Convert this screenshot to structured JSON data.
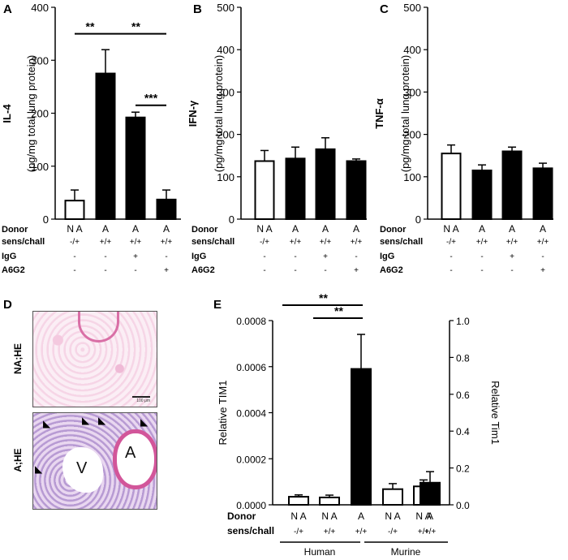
{
  "panel_letters": [
    "A",
    "B",
    "C",
    "D",
    "E"
  ],
  "table_rows": [
    "Donor",
    "sens/chall",
    "IgG",
    "A6G2"
  ],
  "chart_data": [
    {
      "panel": "A",
      "type": "bar",
      "ylabel_main": "IL-4",
      "ylabel_sub": "(pg/mg total lung protein)",
      "ylim": [
        0,
        400
      ],
      "yticks": [
        0,
        100,
        200,
        300,
        400
      ],
      "values": [
        35,
        275,
        192,
        37
      ],
      "errors": [
        20,
        45,
        10,
        18
      ],
      "fills": [
        "#ffffff",
        "#000000",
        "#000000",
        "#000000"
      ],
      "conditions": {
        "Donor": [
          "N A",
          "A",
          "A",
          "A"
        ],
        "sens/chall": [
          "-/+",
          "+/+",
          "+/+",
          "+/+"
        ],
        "IgG": [
          "-",
          "-",
          "+",
          "-"
        ],
        "A6G2": [
          "-",
          "-",
          "-",
          "+"
        ]
      },
      "significance": [
        {
          "from": 0,
          "to": 1,
          "label": "**"
        },
        {
          "from": 1,
          "to": 3,
          "label": "**"
        },
        {
          "from": 2,
          "to": 3,
          "label": "***"
        }
      ]
    },
    {
      "panel": "B",
      "type": "bar",
      "ylabel_main": "IFN-γ",
      "ylabel_sub": "(pg/mg total lung protein)",
      "ylim": [
        0,
        500
      ],
      "yticks": [
        0,
        100,
        200,
        300,
        400,
        500
      ],
      "values": [
        137,
        143,
        165,
        137
      ],
      "errors": [
        25,
        27,
        27,
        5
      ],
      "fills": [
        "#ffffff",
        "#000000",
        "#000000",
        "#000000"
      ],
      "conditions": {
        "Donor": [
          "N A",
          "A",
          "A",
          "A"
        ],
        "sens/chall": [
          "-/+",
          "+/+",
          "+/+",
          "+/+"
        ],
        "IgG": [
          "-",
          "-",
          "+",
          "-"
        ],
        "A6G2": [
          "-",
          "-",
          "-",
          "+"
        ]
      },
      "significance": []
    },
    {
      "panel": "C",
      "type": "bar",
      "ylabel_main": "TNF-α",
      "ylabel_sub": "(pg/mg total lung protein)",
      "ylim": [
        0,
        500
      ],
      "yticks": [
        0,
        100,
        200,
        300,
        400,
        500
      ],
      "values": [
        155,
        115,
        160,
        120
      ],
      "errors": [
        20,
        13,
        10,
        12
      ],
      "fills": [
        "#ffffff",
        "#000000",
        "#000000",
        "#000000"
      ],
      "conditions": {
        "Donor": [
          "N A",
          "A",
          "A",
          "A"
        ],
        "sens/chall": [
          "-/+",
          "+/+",
          "+/+",
          "+/+"
        ],
        "IgG": [
          "-",
          "-",
          "+",
          "-"
        ],
        "A6G2": [
          "-",
          "-",
          "-",
          "+"
        ]
      },
      "significance": []
    },
    {
      "panel": "E",
      "type": "bar",
      "ylabel_left": "Relative TIM1",
      "ylabel_right": "Relative Tim1",
      "ylim_left": [
        0,
        0.0008
      ],
      "ylim_right": [
        0,
        1.0
      ],
      "yticks_left": [
        "0.0000",
        "0.0002",
        "0.0004",
        "0.0006",
        "0.0008"
      ],
      "yticks_right": [
        "0.0",
        "0.2",
        "0.4",
        "0.6",
        "0.8",
        "1.0"
      ],
      "series": [
        {
          "name": "Human",
          "axis": "left",
          "values": [
            3.5e-05,
            3.2e-05,
            0.00059
          ],
          "errors": [
            8e-06,
            1e-05,
            0.00015
          ]
        },
        {
          "name": "Murine",
          "axis": "right",
          "values": [
            0.085,
            0.1,
            0.12
          ],
          "errors": [
            0.03,
            0.035,
            0.06
          ]
        }
      ],
      "fills": [
        "#ffffff",
        "#ffffff",
        "#000000",
        "#ffffff",
        "#ffffff",
        "#000000"
      ],
      "conditions": {
        "Donor": [
          "N A",
          "N A",
          "A",
          "N A",
          "N A",
          "A"
        ],
        "sens/chall": [
          "-/+",
          "+/+",
          "+/+",
          "-/+",
          "+/+",
          "+/+"
        ]
      },
      "groups": [
        "Human",
        "Murine"
      ],
      "significance": [
        {
          "from": 0,
          "to": 2,
          "label": "**"
        },
        {
          "from": 1,
          "to": 2,
          "label": "**"
        }
      ]
    }
  ],
  "histology": {
    "top_label": "NA;HE",
    "bottom_label": "A;HE",
    "v_label": "V",
    "a_label": "A",
    "scale_label": "100 μm"
  }
}
